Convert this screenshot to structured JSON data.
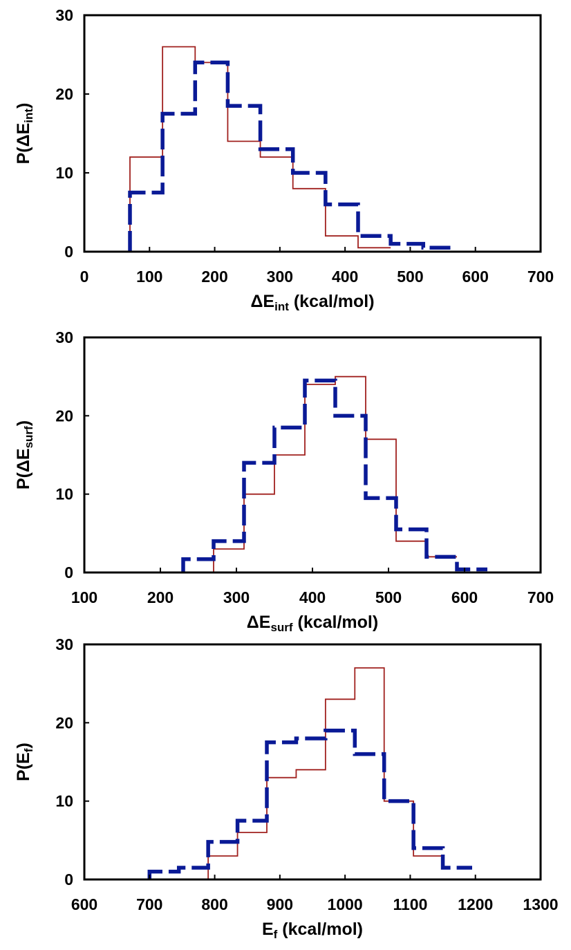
{
  "chart_data": [
    {
      "type": "histogram",
      "xlabel": {
        "base": "ΔE",
        "sub": "int",
        "rest": " (kcal/mol)"
      },
      "ylabel": {
        "base": "P(ΔE",
        "sub": "int",
        "rest": ")"
      },
      "xlim": [
        0,
        700
      ],
      "ylim": [
        0,
        30
      ],
      "xticks": [
        "0",
        "100",
        "200",
        "300",
        "400",
        "500",
        "600",
        "700"
      ],
      "yticks": [
        "0",
        "10",
        "20",
        "30"
      ],
      "series": [
        {
          "style": "solid",
          "color": "#a0201e",
          "edges": [
            70,
            120,
            170,
            220,
            270,
            320,
            370,
            420,
            470
          ],
          "values": [
            12,
            26,
            24,
            14,
            12,
            8,
            2,
            0.5
          ]
        },
        {
          "style": "dashed",
          "color": "#0a1a96",
          "edges": [
            70,
            120,
            170,
            220,
            270,
            320,
            370,
            420,
            470,
            520,
            570
          ],
          "values": [
            7.5,
            17.5,
            24,
            18.5,
            13,
            10,
            6,
            2,
            1,
            0.5
          ]
        }
      ]
    },
    {
      "type": "histogram",
      "xlabel": {
        "base": "ΔE",
        "sub": "surf",
        "rest": " (kcal/mol)"
      },
      "ylabel": {
        "base": "P(ΔE",
        "sub": "surf",
        "rest": ")"
      },
      "xlim": [
        100,
        700
      ],
      "ylim": [
        0,
        30
      ],
      "xticks": [
        "100",
        "200",
        "300",
        "400",
        "500",
        "600",
        "700"
      ],
      "yticks": [
        "0",
        "10",
        "20",
        "30"
      ],
      "series": [
        {
          "style": "solid",
          "color": "#a0201e",
          "edges": [
            230,
            270,
            310,
            350,
            390,
            430,
            470,
            510,
            550,
            590
          ],
          "values": [
            0,
            3,
            10,
            15,
            24,
            25,
            17,
            4,
            2
          ]
        },
        {
          "style": "dashed",
          "color": "#0a1a96",
          "edges": [
            230,
            270,
            310,
            350,
            390,
            430,
            470,
            510,
            550,
            590,
            630
          ],
          "values": [
            1.7,
            4,
            14,
            18.5,
            24.5,
            20,
            9.5,
            5.5,
            2,
            0.4
          ]
        }
      ]
    },
    {
      "type": "histogram",
      "xlabel": {
        "base": "E",
        "sub": "f",
        "rest": " (kcal/mol)"
      },
      "ylabel": {
        "base": "P(E",
        "sub": "f",
        "rest": ")"
      },
      "xlim": [
        600,
        1300
      ],
      "ylim": [
        0,
        30
      ],
      "xticks": [
        "600",
        "700",
        "800",
        "900",
        "1000",
        "1100",
        "1200",
        "1300"
      ],
      "yticks": [
        "0",
        "10",
        "20",
        "30"
      ],
      "series": [
        {
          "style": "solid",
          "color": "#a0201e",
          "edges": [
            700,
            745,
            790,
            835,
            880,
            925,
            970,
            1015,
            1060,
            1105,
            1150
          ],
          "values": [
            0,
            0,
            3,
            6,
            13,
            14,
            23,
            27,
            10,
            3
          ]
        },
        {
          "style": "dashed",
          "color": "#0a1a96",
          "edges": [
            700,
            745,
            790,
            835,
            880,
            925,
            970,
            1015,
            1060,
            1105,
            1150,
            1195
          ],
          "values": [
            1,
            1.5,
            4.8,
            7.5,
            17.5,
            18,
            19,
            16,
            10,
            4,
            1.5
          ]
        }
      ]
    }
  ]
}
